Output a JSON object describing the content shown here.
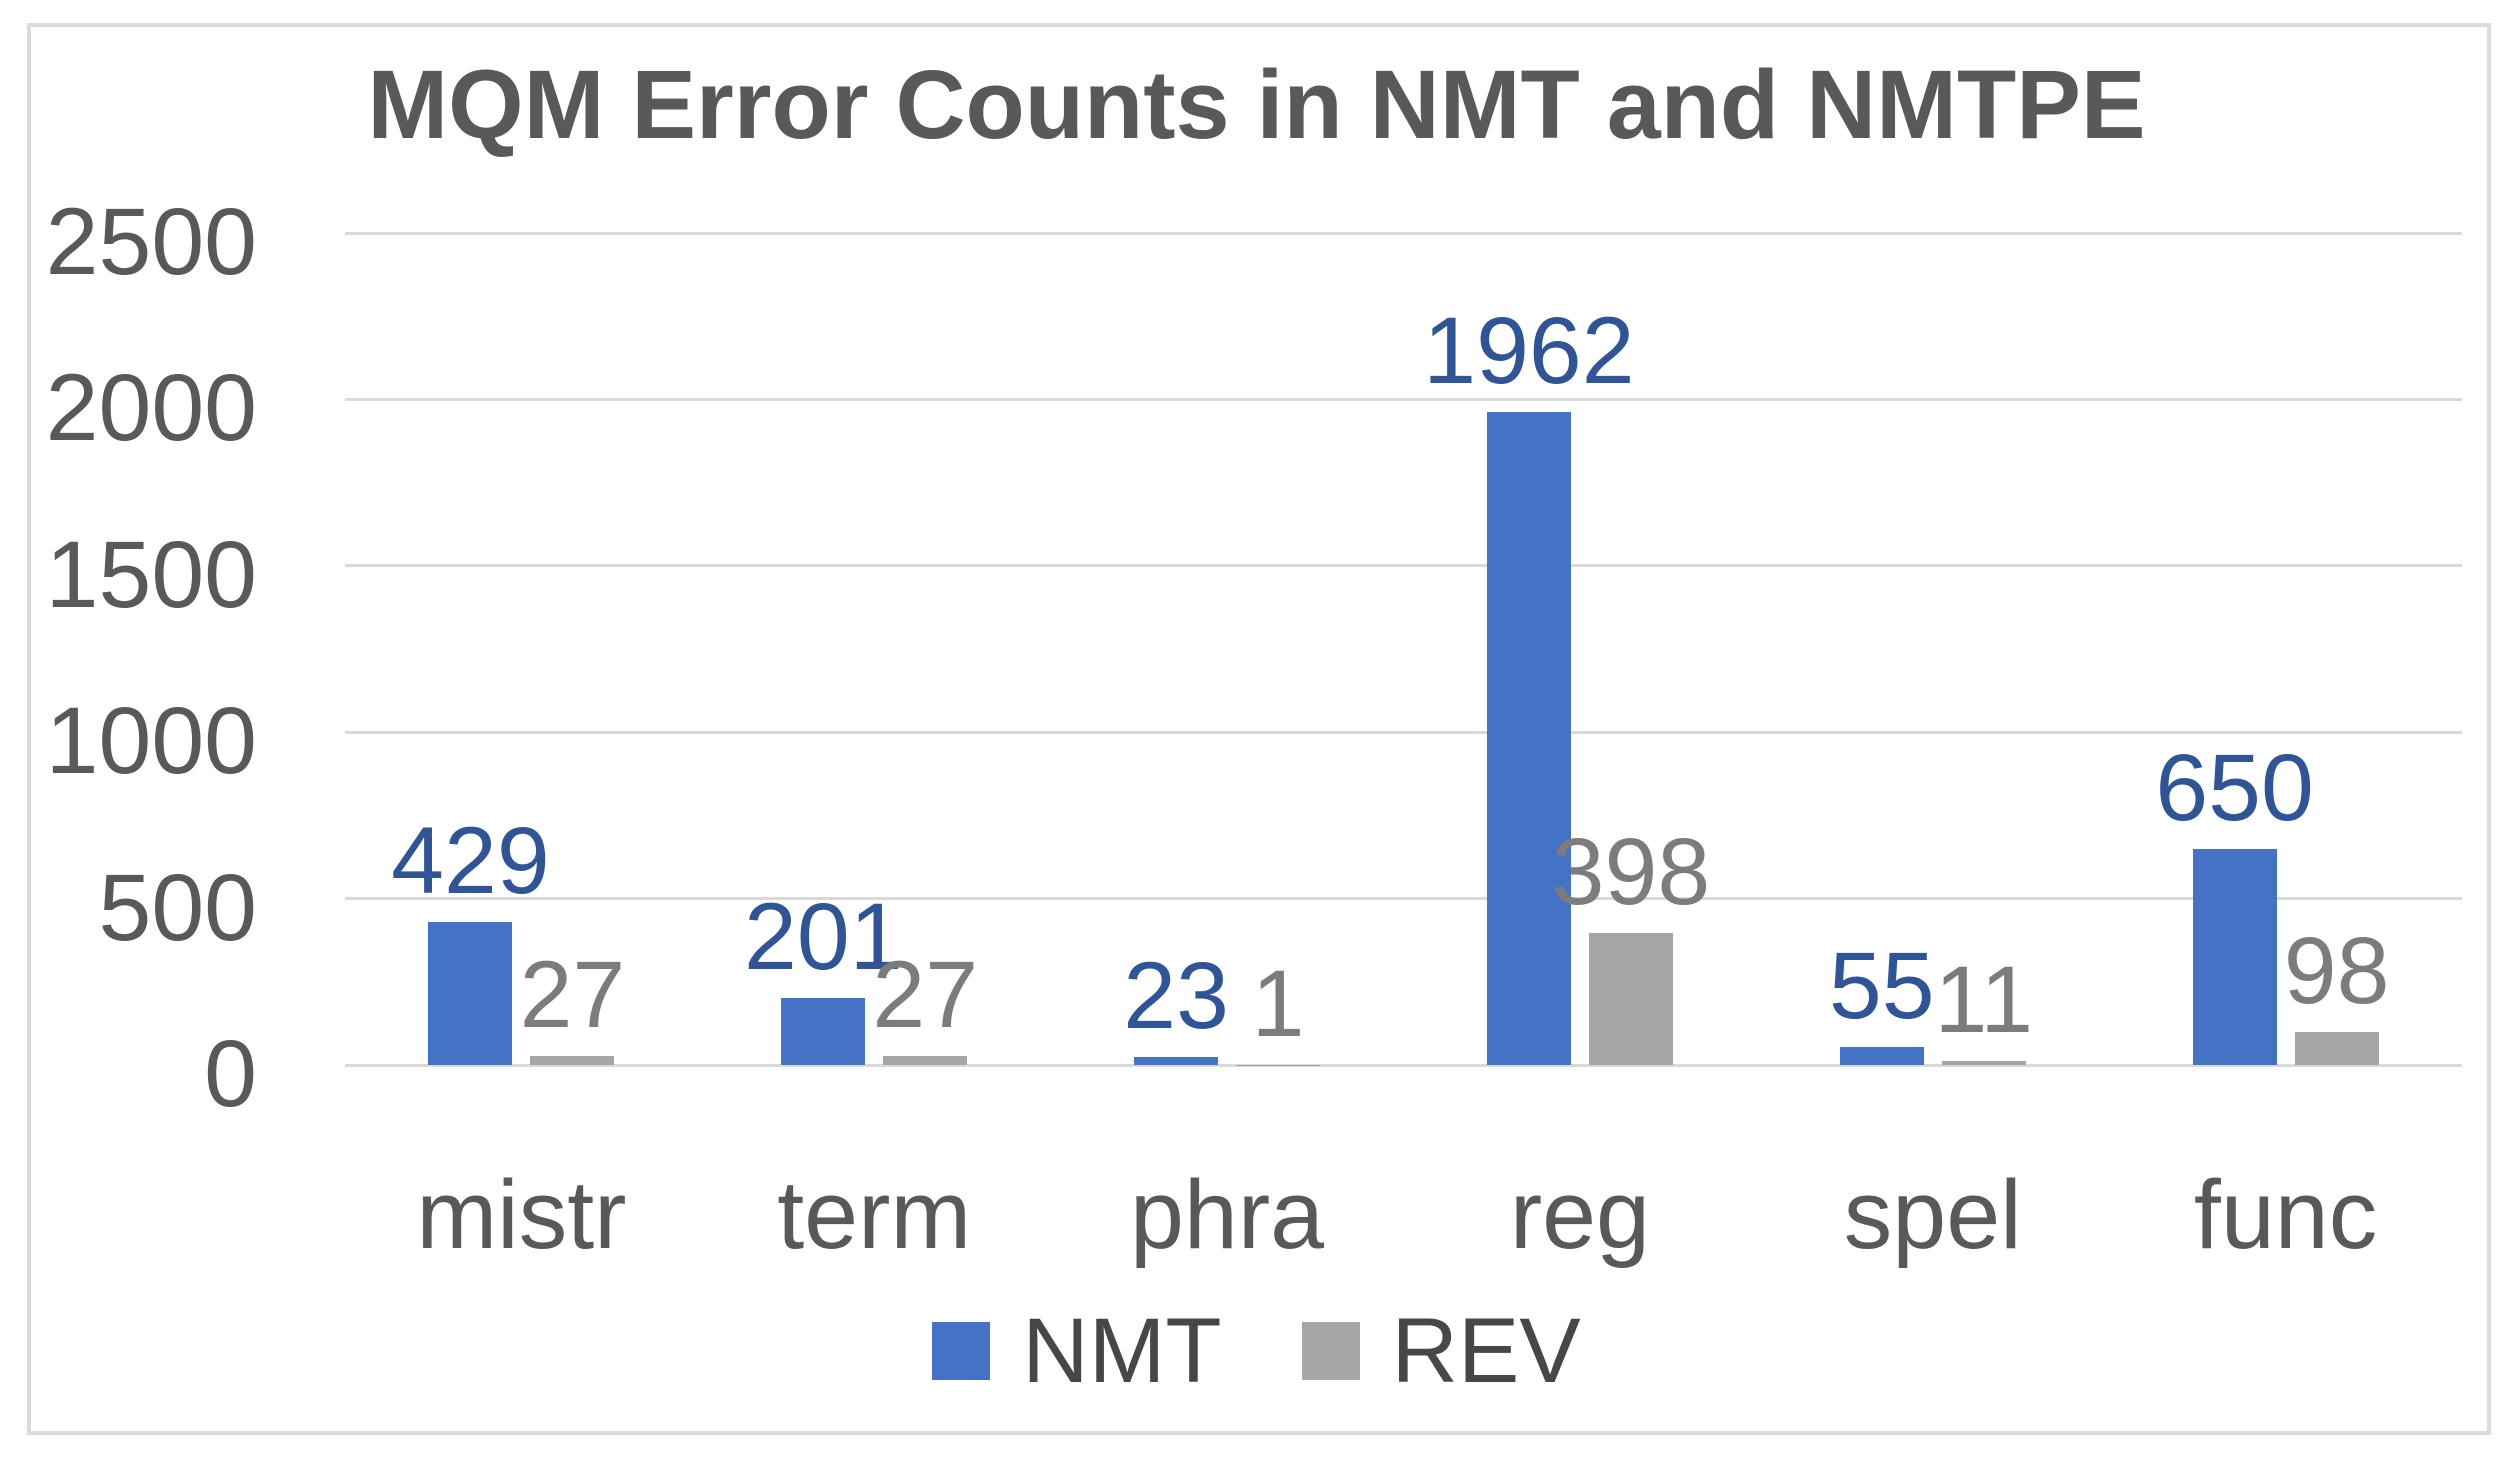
{
  "chart_data": {
    "type": "bar",
    "title": "MQM Error Counts in NMT and NMTPE",
    "categories": [
      "mistr",
      "term",
      "phra",
      "reg",
      "spel",
      "func"
    ],
    "series": [
      {
        "name": "NMT",
        "color": "#4472C4",
        "label_color": "#2F5597",
        "values": [
          429,
          201,
          23,
          1962,
          55,
          650
        ]
      },
      {
        "name": "REV",
        "color": "#A6A6A6",
        "label_color": "#7C7C7C",
        "values": [
          27,
          27,
          1,
          398,
          11,
          98
        ]
      }
    ],
    "yticks": [
      0,
      500,
      1000,
      1500,
      2000,
      2500
    ],
    "ylim": [
      0,
      2500
    ],
    "grid": true,
    "legend_position": "bottom",
    "data_labels": true,
    "axis_text_color": "#595959",
    "gridline_color": "#D9D9D9",
    "border_color": "#DBDBDB"
  }
}
